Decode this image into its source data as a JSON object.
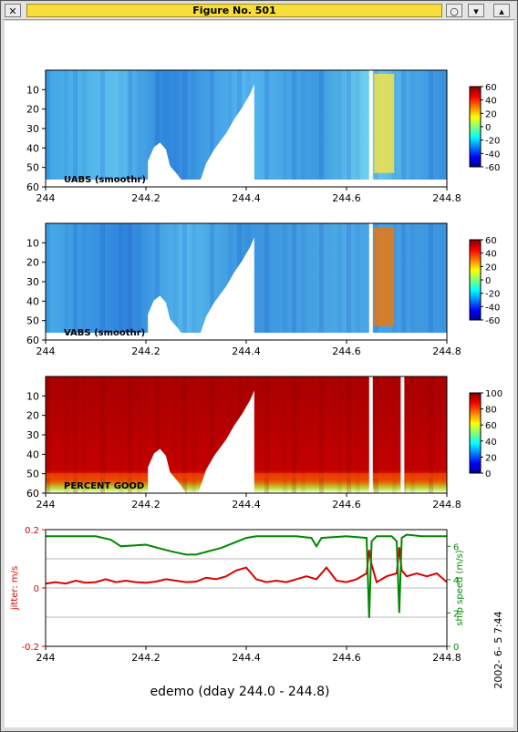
{
  "window": {
    "title": "Figure No. 501",
    "buttons": [
      "close-icon",
      "circle-icon",
      "arrow-down-icon",
      "arrow-up-icon"
    ]
  },
  "figure": {
    "caption": "edemo (dday 244.0 - 244.8)",
    "timestamp": "2002- 6- 5   7:44"
  },
  "chart_data": [
    {
      "type": "heatmap",
      "label": "UABS (smoothr)",
      "x_range": [
        244.0,
        244.8
      ],
      "x_ticks": [
        "244",
        "244.2",
        "244.4",
        "244.6",
        "244.8"
      ],
      "y_range": [
        60,
        0
      ],
      "y_ticks": [
        "10",
        "20",
        "30",
        "40",
        "50",
        "60"
      ],
      "colorbar": {
        "min": -60,
        "max": 60,
        "ticks": [
          "60",
          "40",
          "20",
          "0",
          "-20",
          "-40",
          "-60"
        ]
      }
    },
    {
      "type": "heatmap",
      "label": "VABS (smoothr)",
      "x_range": [
        244.0,
        244.8
      ],
      "x_ticks": [
        "244",
        "244.2",
        "244.4",
        "244.6",
        "244.8"
      ],
      "y_range": [
        60,
        0
      ],
      "y_ticks": [
        "10",
        "20",
        "30",
        "40",
        "50",
        "60"
      ],
      "colorbar": {
        "min": -60,
        "max": 60,
        "ticks": [
          "60",
          "40",
          "20",
          "0",
          "-20",
          "-40",
          "-60"
        ]
      }
    },
    {
      "type": "heatmap",
      "label": "PERCENT GOOD",
      "x_range": [
        244.0,
        244.8
      ],
      "x_ticks": [
        "244",
        "244.2",
        "244.4",
        "244.6",
        "244.8"
      ],
      "y_range": [
        60,
        0
      ],
      "y_ticks": [
        "10",
        "20",
        "30",
        "40",
        "50",
        "60"
      ],
      "colorbar": {
        "min": 0,
        "max": 100,
        "ticks": [
          "100",
          "80",
          "60",
          "40",
          "20",
          "0"
        ]
      }
    },
    {
      "type": "line",
      "x_range": [
        244.0,
        244.8
      ],
      "x_ticks": [
        "244",
        "244.2",
        "244.4",
        "244.6",
        "244.8"
      ],
      "left_axis": {
        "label": "jitter: m/s",
        "range": [
          -0.2,
          0.2
        ],
        "ticks": [
          "0.2",
          "0",
          "-0.2"
        ],
        "color": "#dd0000"
      },
      "right_axis": {
        "label": "ship speed (m/s)",
        "range": [
          0,
          7
        ],
        "ticks": [
          "6",
          "4",
          "2",
          "0"
        ],
        "color": "#008800"
      },
      "grid_y": [
        0.1,
        -0.1
      ],
      "series": [
        {
          "axis": "left",
          "color": "#dd0000",
          "x": [
            244.0,
            244.02,
            244.04,
            244.06,
            244.08,
            244.1,
            244.12,
            244.14,
            244.16,
            244.18,
            244.2,
            244.22,
            244.24,
            244.26,
            244.28,
            244.3,
            244.32,
            244.34,
            244.36,
            244.38,
            244.4,
            244.42,
            244.44,
            244.46,
            244.48,
            244.5,
            244.52,
            244.54,
            244.56,
            244.58,
            244.6,
            244.62,
            244.64,
            244.645,
            244.65,
            244.66,
            244.68,
            244.7,
            244.705,
            244.71,
            244.72,
            244.74,
            244.76,
            244.78,
            244.8
          ],
          "y": [
            0.015,
            0.02,
            0.015,
            0.025,
            0.018,
            0.02,
            0.03,
            0.02,
            0.025,
            0.02,
            0.018,
            0.022,
            0.03,
            0.025,
            0.02,
            0.022,
            0.035,
            0.03,
            0.04,
            0.06,
            0.07,
            0.03,
            0.02,
            0.025,
            0.02,
            0.03,
            0.04,
            0.03,
            0.07,
            0.025,
            0.02,
            0.03,
            0.05,
            0.13,
            0.08,
            0.02,
            0.04,
            0.05,
            0.14,
            0.06,
            0.04,
            0.05,
            0.04,
            0.05,
            0.02
          ]
        },
        {
          "axis": "right",
          "color": "#008800",
          "x": [
            244.0,
            244.1,
            244.13,
            244.15,
            244.2,
            244.25,
            244.28,
            244.3,
            244.35,
            244.4,
            244.42,
            244.5,
            244.53,
            244.54,
            244.55,
            244.6,
            244.64,
            244.645,
            244.65,
            244.66,
            244.68,
            244.69,
            244.7,
            244.705,
            244.71,
            244.72,
            244.75,
            244.8
          ],
          "y": [
            6.6,
            6.6,
            6.4,
            6.0,
            6.1,
            5.7,
            5.5,
            5.5,
            5.9,
            6.5,
            6.6,
            6.6,
            6.5,
            6.0,
            6.5,
            6.6,
            6.5,
            1.7,
            6.3,
            6.6,
            6.6,
            6.6,
            6.3,
            2.0,
            6.5,
            6.7,
            6.6,
            6.6
          ]
        }
      ]
    }
  ]
}
